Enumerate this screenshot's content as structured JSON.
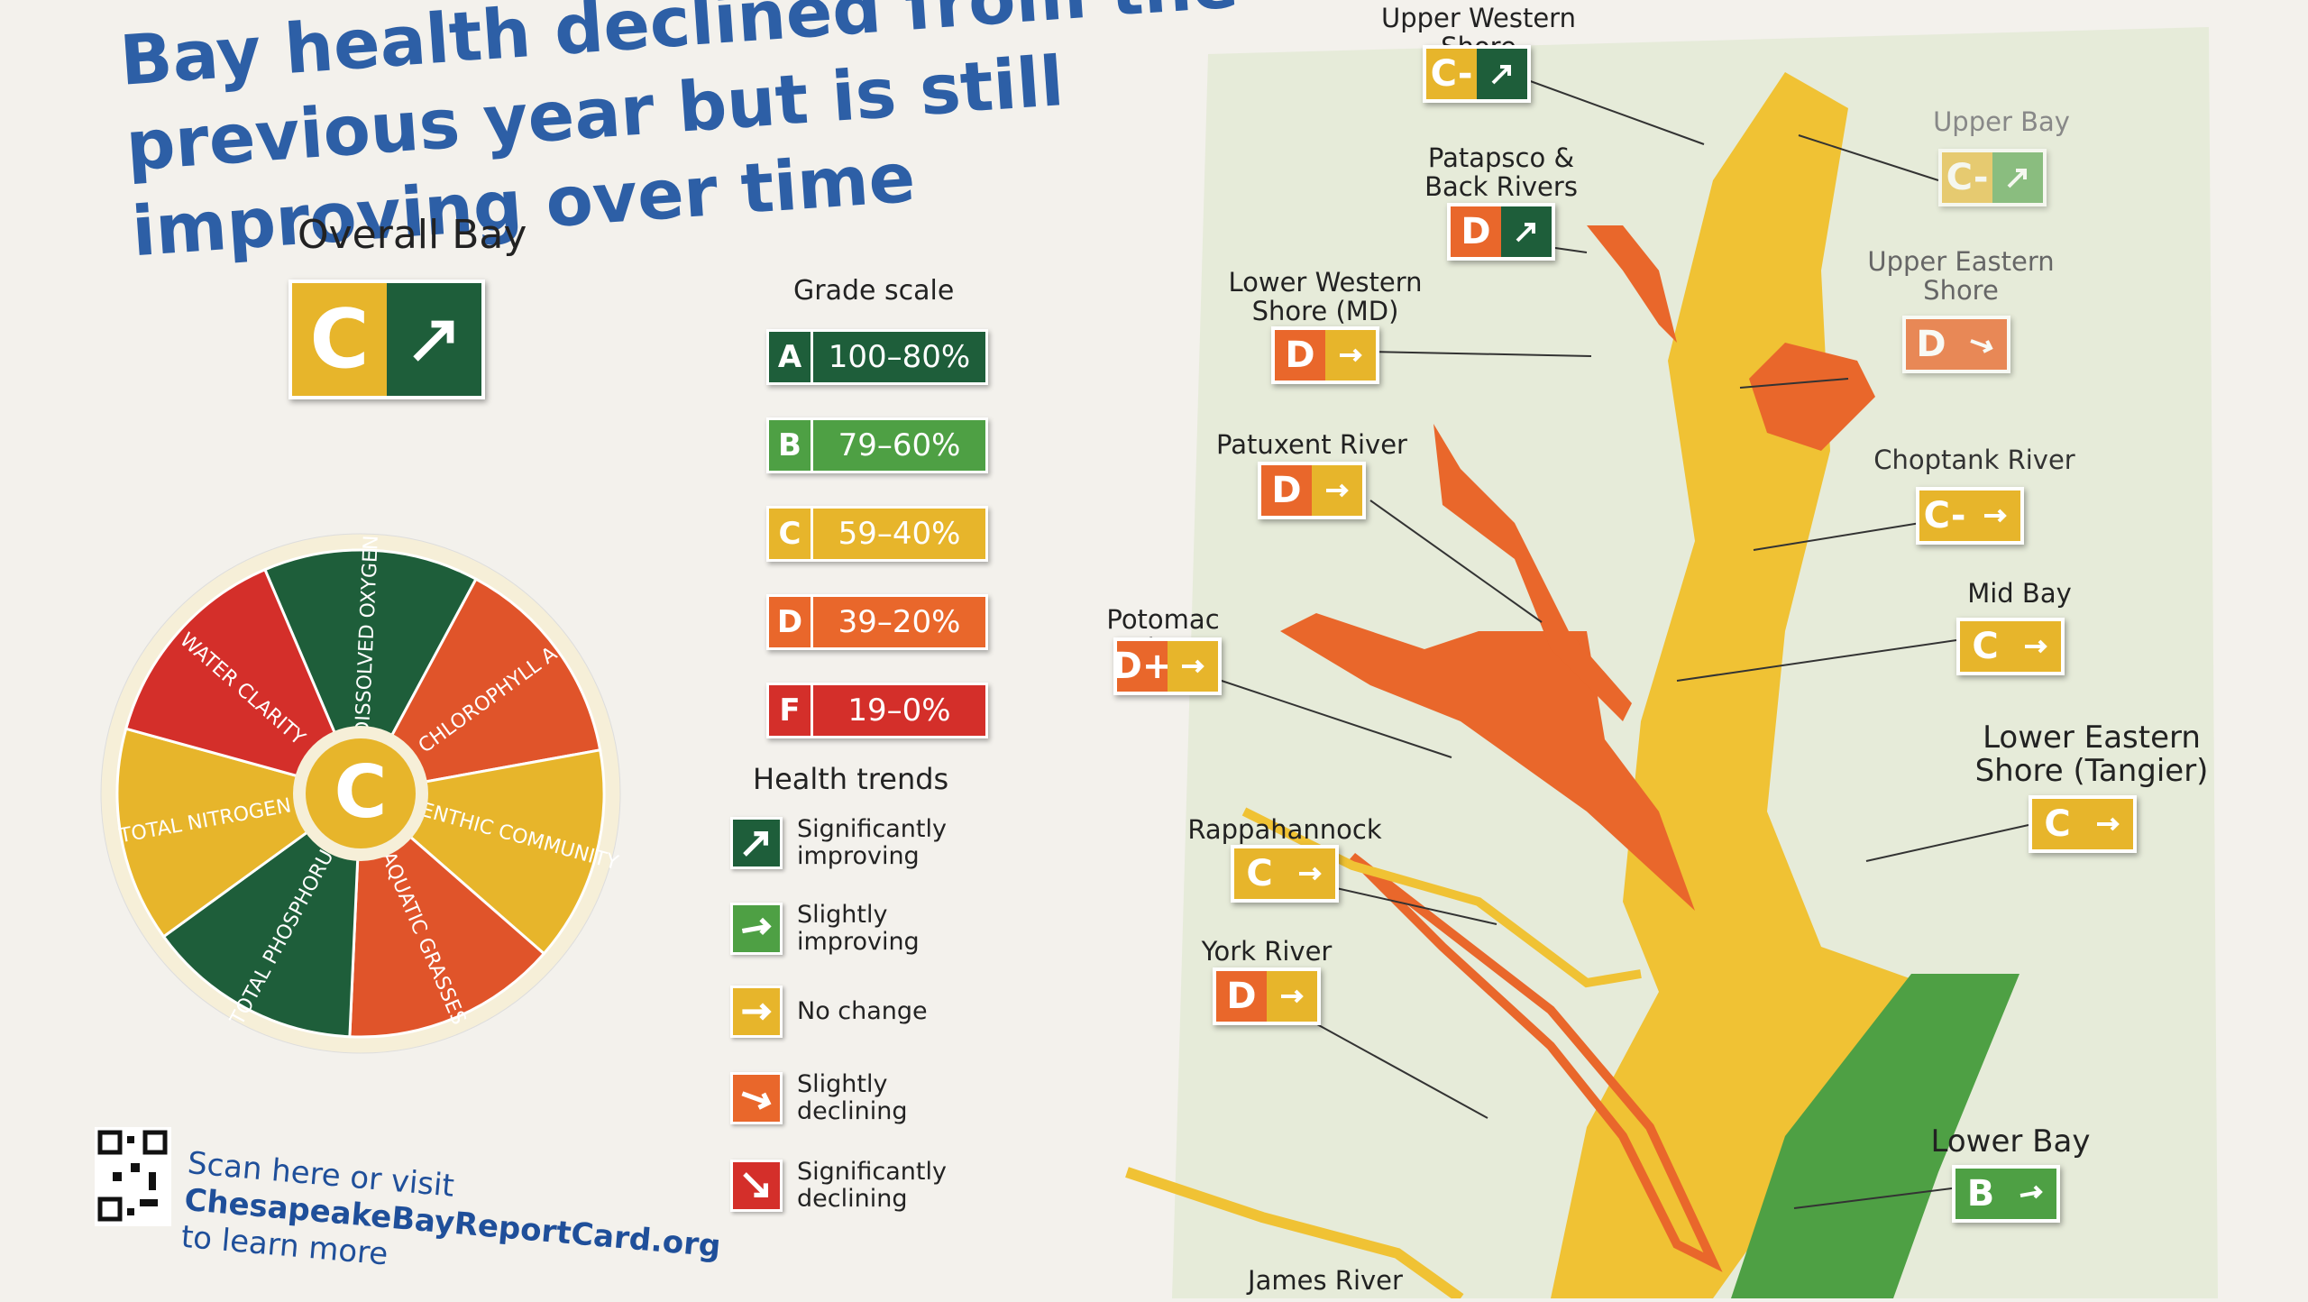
{
  "header": {
    "title": "Bay health declined from the previous year but is still improving over time"
  },
  "overall": {
    "label": "Overall Bay",
    "grade": "C"
  },
  "wheel": {
    "center": "C",
    "segments": [
      {
        "label": "DISSOLVED OXYGEN",
        "color": "#1e5e3a"
      },
      {
        "label": "CHLOROPHYLL A",
        "color": "#e0542a"
      },
      {
        "label": "BENTHIC COMMUNITY",
        "color": "#e7b52b"
      },
      {
        "label": "AQUATIC GRASSES",
        "color": "#e0542a"
      },
      {
        "label": "TOTAL PHOSPHORUS",
        "color": "#1e5e3a"
      },
      {
        "label": "TOTAL NITROGEN",
        "color": "#e7b52b"
      },
      {
        "label": "WATER CLARITY",
        "color": "#d42f2a"
      }
    ]
  },
  "grade_scale": {
    "title": "Grade scale",
    "items": [
      {
        "grade": "A",
        "range": "100–80%"
      },
      {
        "grade": "B",
        "range": "79–60%"
      },
      {
        "grade": "C",
        "range": "59–40%"
      },
      {
        "grade": "D",
        "range": "39–20%"
      },
      {
        "grade": "F",
        "range": "19–0%"
      }
    ]
  },
  "health_trends": {
    "title": "Health trends",
    "items": [
      "Significantly improving",
      "Slightly improving",
      "No change",
      "Slightly declining",
      "Significantly declining"
    ]
  },
  "footer": {
    "line1": "Scan here or visit",
    "url": "ChesapeakeBayReportCard.org",
    "line3": "to learn more"
  },
  "regions": [
    {
      "name": "Upper Western Shore",
      "grade": "C-"
    },
    {
      "name": "Upper Bay",
      "grade": "C-"
    },
    {
      "name": "Patapsco & Back Rivers",
      "grade": "D"
    },
    {
      "name": "Upper Eastern Shore",
      "grade": "D"
    },
    {
      "name": "Lower Western Shore (MD)",
      "grade": "D"
    },
    {
      "name": "Patuxent River",
      "grade": "D"
    },
    {
      "name": "Choptank River",
      "grade": "C-"
    },
    {
      "name": "Mid Bay",
      "grade": "C"
    },
    {
      "name": "Potomac River",
      "grade": "D+"
    },
    {
      "name": "Lower Eastern Shore (Tangier)",
      "grade": "C"
    },
    {
      "name": "Rappahannock River",
      "grade": "C"
    },
    {
      "name": "York River",
      "grade": "D"
    },
    {
      "name": "Lower Bay",
      "grade": "B"
    },
    {
      "name": "James River"
    }
  ]
}
